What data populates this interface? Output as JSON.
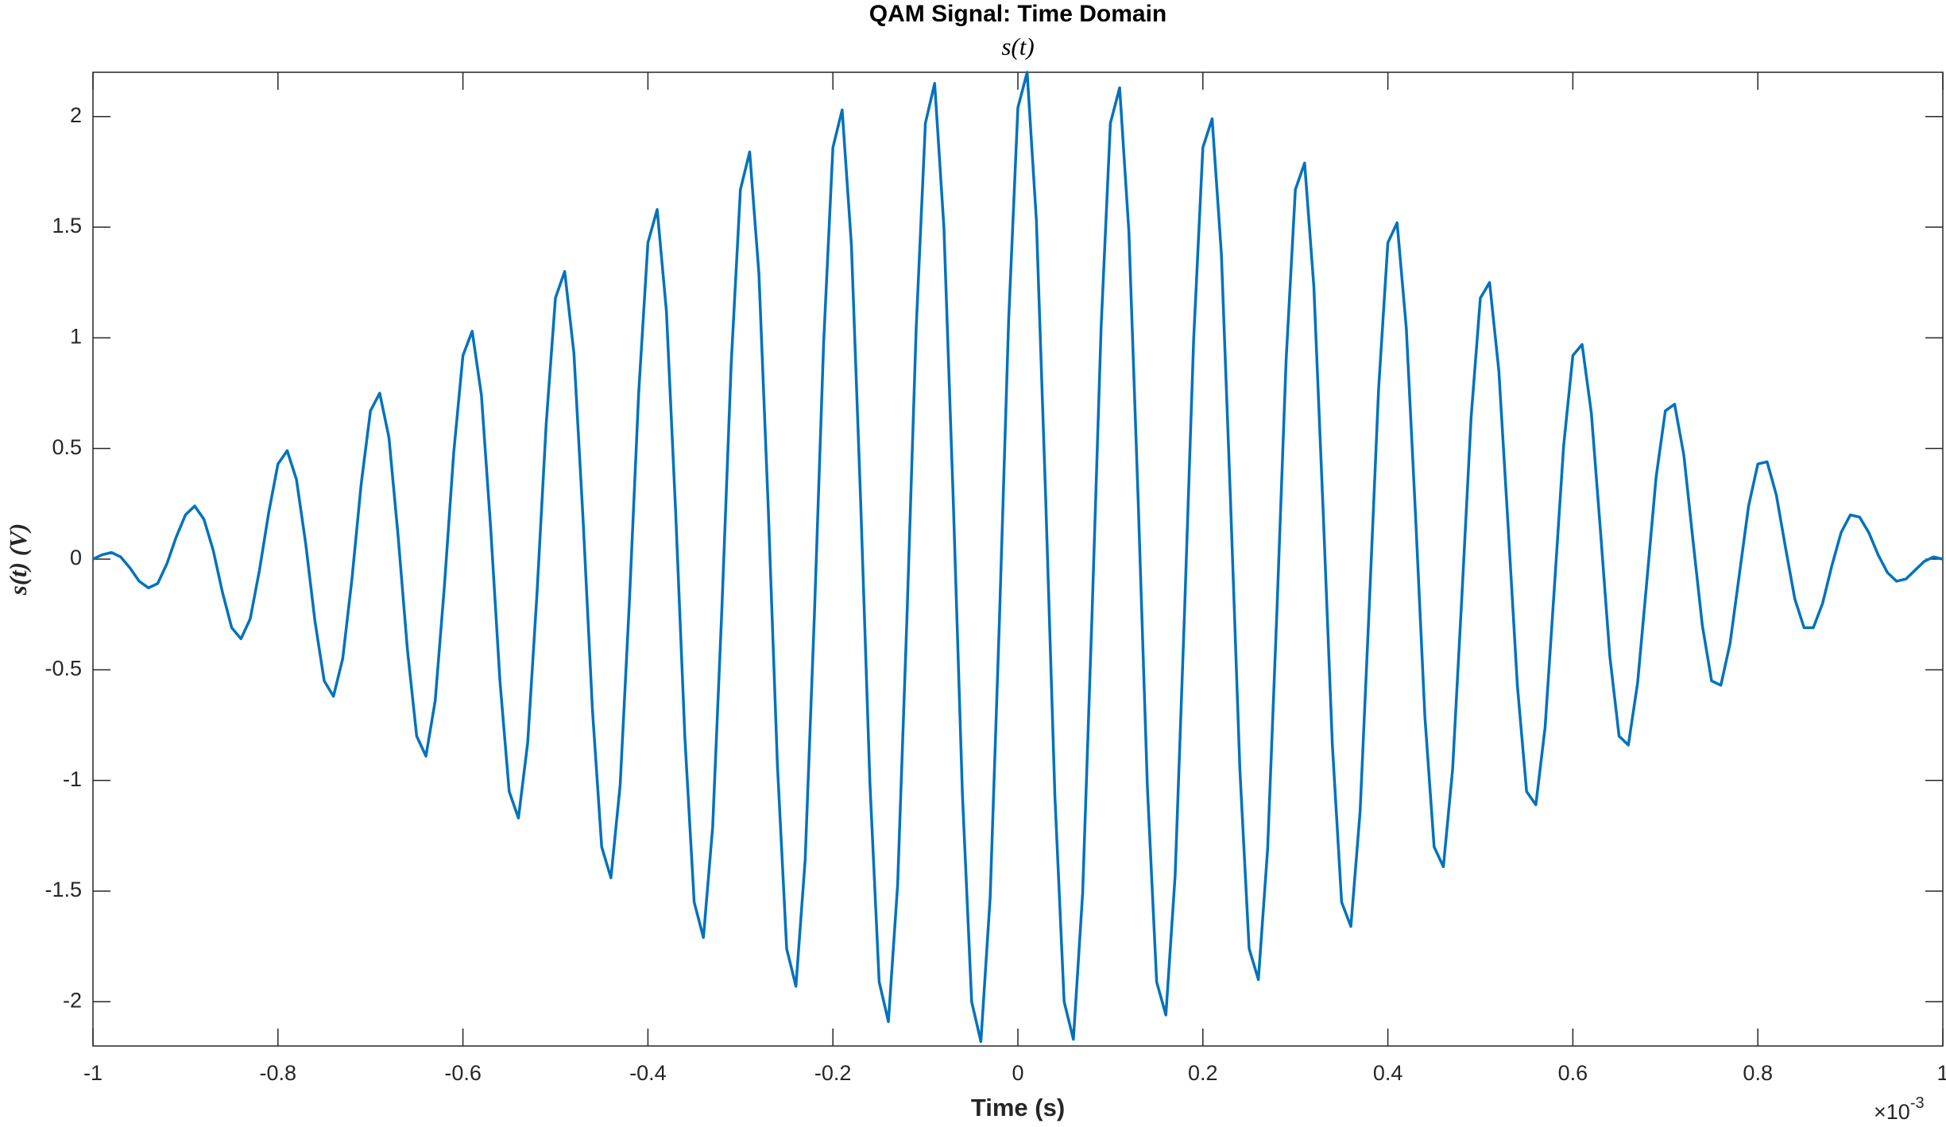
{
  "chart_data": {
    "type": "line",
    "title": "QAM Signal: Time Domain",
    "subtitle": "s(t)",
    "x_label": "Time (s)",
    "y_label": "s(t) (V)",
    "x_multiplier": {
      "base": "×10",
      "exponent": "-3"
    },
    "xlim": [
      -1,
      1
    ],
    "xticks": [
      -1,
      -0.8,
      -0.6,
      -0.4,
      -0.2,
      0,
      0.2,
      0.4,
      0.6,
      0.8,
      1
    ],
    "ylim": [
      -2.2,
      2.2
    ],
    "yticks": [
      -2,
      -1.5,
      -1,
      -0.5,
      0,
      0.5,
      1,
      1.5,
      2
    ],
    "grid": false,
    "x": [
      -1,
      -0.99,
      -0.98,
      -0.97,
      -0.96,
      -0.95,
      -0.94,
      -0.93,
      -0.92,
      -0.91,
      -0.9,
      -0.89,
      -0.88,
      -0.87,
      -0.86,
      -0.85,
      -0.84,
      -0.83,
      -0.82,
      -0.81,
      -0.8,
      -0.79,
      -0.78,
      -0.77,
      -0.76,
      -0.75,
      -0.74,
      -0.73,
      -0.72,
      -0.71,
      -0.7,
      -0.69,
      -0.68,
      -0.67,
      -0.66,
      -0.65,
      -0.64,
      -0.63,
      -0.62,
      -0.61,
      -0.6,
      -0.59,
      -0.58,
      -0.57,
      -0.56,
      -0.55,
      -0.54,
      -0.53,
      -0.52,
      -0.51,
      -0.5,
      -0.49,
      -0.48,
      -0.47,
      -0.46,
      -0.45,
      -0.44,
      -0.43,
      -0.42,
      -0.41,
      -0.4,
      -0.39,
      -0.38,
      -0.37,
      -0.36,
      -0.35,
      -0.34,
      -0.33,
      -0.32,
      -0.31,
      -0.3,
      -0.29,
      -0.28,
      -0.27,
      -0.26,
      -0.25,
      -0.24,
      -0.23,
      -0.22,
      -0.21,
      -0.2,
      -0.19,
      -0.18,
      -0.17,
      -0.16,
      -0.15,
      -0.14,
      -0.13,
      -0.12,
      -0.11,
      -0.1,
      -0.09,
      -0.08,
      -0.07,
      -0.06,
      -0.05,
      -0.04,
      -0.03,
      -0.02,
      -0.01,
      0,
      0.01,
      0.02,
      0.03,
      0.04,
      0.05,
      0.06,
      0.07,
      0.08,
      0.09,
      0.1,
      0.11,
      0.12,
      0.13,
      0.14,
      0.15,
      0.16,
      0.17,
      0.18,
      0.19,
      0.2,
      0.21,
      0.22,
      0.23,
      0.24,
      0.25,
      0.26,
      0.27,
      0.28,
      0.29,
      0.3,
      0.31,
      0.32,
      0.33,
      0.34,
      0.35,
      0.36,
      0.37,
      0.38,
      0.39,
      0.4,
      0.41,
      0.42,
      0.43,
      0.44,
      0.45,
      0.46,
      0.47,
      0.48,
      0.49,
      0.5,
      0.51,
      0.52,
      0.53,
      0.54,
      0.55,
      0.56,
      0.57,
      0.58,
      0.59,
      0.6,
      0.61,
      0.62,
      0.63,
      0.64,
      0.65,
      0.66,
      0.67,
      0.68,
      0.69,
      0.7,
      0.71,
      0.72,
      0.73,
      0.74,
      0.75,
      0.76,
      0.77,
      0.78,
      0.79,
      0.8,
      0.81,
      0.82,
      0.83,
      0.84,
      0.85,
      0.86,
      0.87,
      0.88,
      0.89,
      0.9,
      0.91,
      0.92,
      0.93,
      0.94,
      0.95,
      0.96,
      0.97,
      0.98,
      0.99,
      1
    ],
    "series": [
      {
        "name": "s(t)",
        "color": "#0072bd",
        "values": [
          0,
          0.02,
          0.03,
          0.01,
          -0.04,
          -0.1,
          -0.13,
          -0.11,
          -0.02,
          0.1,
          0.2,
          0.24,
          0.18,
          0.04,
          -0.15,
          -0.31,
          -0.36,
          -0.27,
          -0.05,
          0.21,
          0.43,
          0.49,
          0.36,
          0.07,
          -0.28,
          -0.55,
          -0.62,
          -0.45,
          -0.09,
          0.34,
          0.67,
          0.75,
          0.55,
          0.1,
          -0.41,
          -0.8,
          -0.89,
          -0.64,
          -0.12,
          0.48,
          0.92,
          1.03,
          0.74,
          0.14,
          -0.55,
          -1.05,
          -1.17,
          -0.83,
          -0.16,
          0.61,
          1.18,
          1.3,
          0.93,
          0.17,
          -0.68,
          -1.3,
          -1.44,
          -1.02,
          -0.19,
          0.75,
          1.43,
          1.58,
          1.12,
          0.21,
          -0.81,
          -1.55,
          -1.71,
          -1.21,
          -0.22,
          0.88,
          1.67,
          1.84,
          1.29,
          0.24,
          -0.93,
          -1.76,
          -1.93,
          -1.36,
          -0.25,
          0.98,
          1.86,
          2.03,
          1.42,
          0.26,
          -1.01,
          -1.91,
          -2.09,
          -1.47,
          -0.27,
          1.04,
          1.97,
          2.15,
          1.5,
          0.28,
          -1.06,
          -2.0,
          -2.18,
          -1.53,
          -0.28,
          1.08,
          2.04,
          2.2,
          1.53,
          0.28,
          -1.07,
          -2.0,
          -2.17,
          -1.51,
          -0.27,
          1.05,
          1.97,
          2.13,
          1.48,
          0.27,
          -1.03,
          -1.91,
          -2.06,
          -1.43,
          -0.26,
          0.99,
          1.86,
          1.99,
          1.38,
          0.25,
          -0.95,
          -1.76,
          -1.9,
          -1.31,
          -0.24,
          0.9,
          1.67,
          1.79,
          1.23,
          0.22,
          -0.84,
          -1.55,
          -1.66,
          -1.14,
          -0.2,
          0.77,
          1.43,
          1.52,
          1.04,
          0.19,
          -0.71,
          -1.3,
          -1.39,
          -0.95,
          -0.17,
          0.64,
          1.18,
          1.25,
          0.85,
          0.15,
          -0.57,
          -1.05,
          -1.11,
          -0.76,
          -0.13,
          0.51,
          0.92,
          0.97,
          0.66,
          0.12,
          -0.44,
          -0.8,
          -0.84,
          -0.56,
          -0.1,
          0.37,
          0.67,
          0.7,
          0.47,
          0.08,
          -0.3,
          -0.55,
          -0.57,
          -0.38,
          -0.07,
          0.24,
          0.43,
          0.44,
          0.29,
          0.05,
          -0.18,
          -0.31,
          -0.31,
          -0.2,
          -0.03,
          0.12,
          0.2,
          0.19,
          0.12,
          0.02,
          -0.06,
          -0.1,
          -0.09,
          -0.05,
          -0.01,
          0.01,
          0
        ]
      }
    ]
  }
}
